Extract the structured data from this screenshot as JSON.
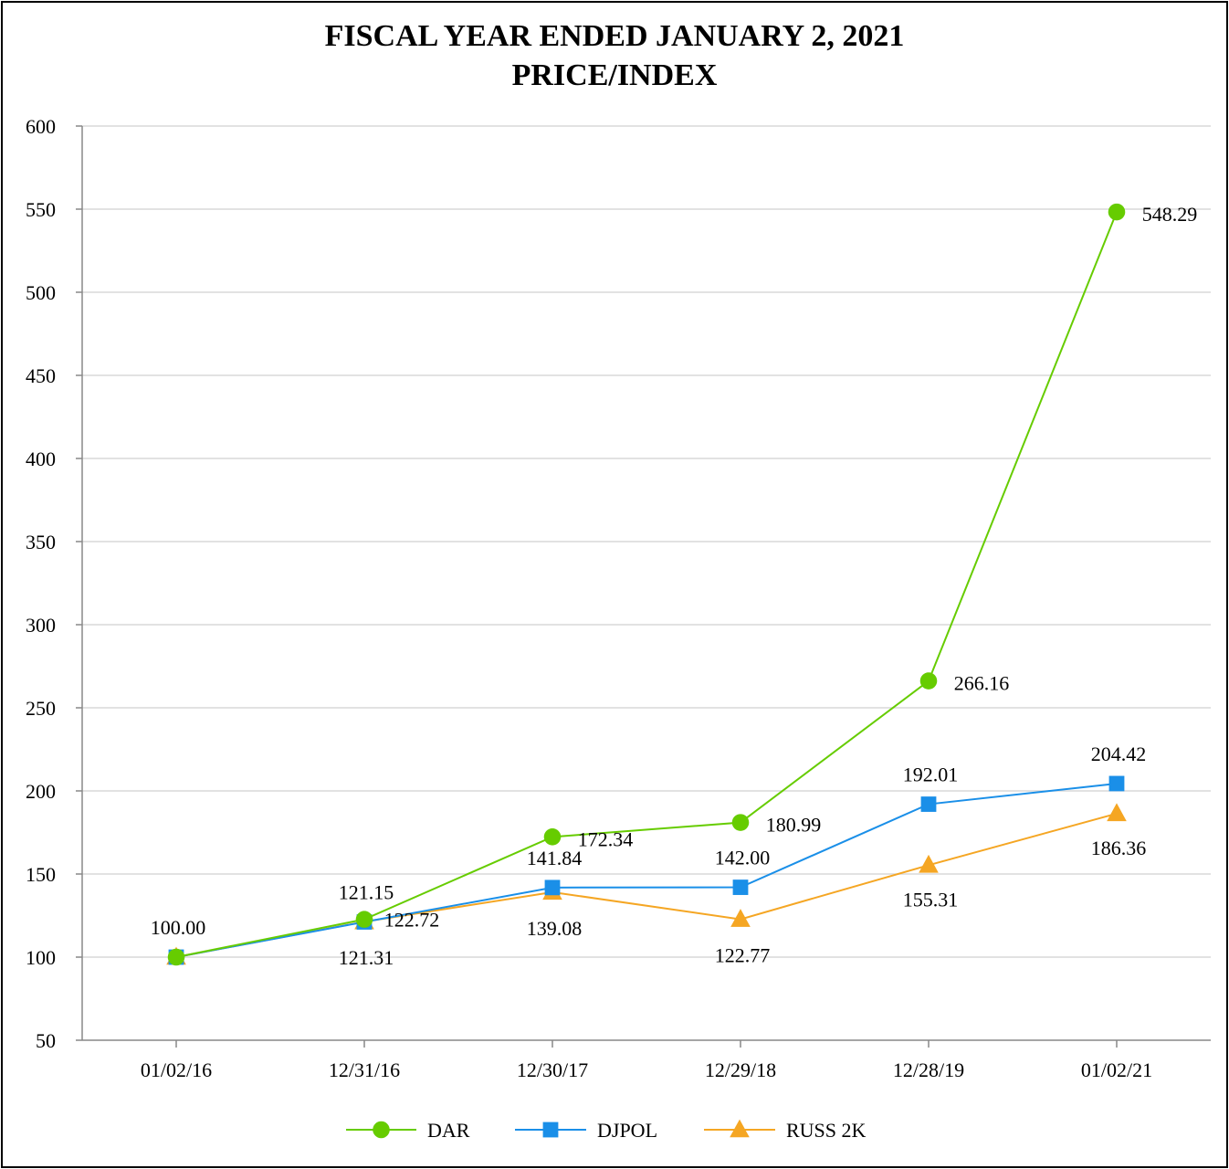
{
  "chart_data": {
    "type": "line",
    "title": "FISCAL YEAR ENDED JANUARY 2, 2021",
    "subtitle": "PRICE/INDEX",
    "xlabel": "",
    "ylabel": "",
    "ylim": [
      50,
      600
    ],
    "yticks": [
      50,
      100,
      150,
      200,
      250,
      300,
      350,
      400,
      450,
      500,
      550,
      600
    ],
    "categories": [
      "01/02/16",
      "12/31/16",
      "12/30/17",
      "12/29/18",
      "12/28/19",
      "01/02/21"
    ],
    "grid": "horizontal",
    "legend_position": "bottom",
    "series": [
      {
        "name": "DAR",
        "marker": "circle",
        "color": "#66cc00",
        "values": [
          100.0,
          122.72,
          172.34,
          180.99,
          266.16,
          548.29
        ],
        "labels": [
          "",
          "122.72",
          "172.34",
          "180.99",
          "266.16",
          "548.29"
        ]
      },
      {
        "name": "DJPOL",
        "marker": "square",
        "color": "#1a8fe8",
        "values": [
          100.0,
          121.15,
          141.84,
          142.0,
          192.01,
          204.42
        ],
        "labels": [
          "100.00",
          "121.15",
          "141.84",
          "142.00",
          "192.01",
          "204.42"
        ]
      },
      {
        "name": "RUSS 2K",
        "marker": "triangle",
        "color": "#f5a623",
        "values": [
          100.0,
          121.31,
          139.08,
          122.77,
          155.31,
          186.36
        ],
        "labels": [
          "",
          "121.31",
          "139.08",
          "122.77",
          "155.31",
          "186.36"
        ]
      }
    ]
  }
}
